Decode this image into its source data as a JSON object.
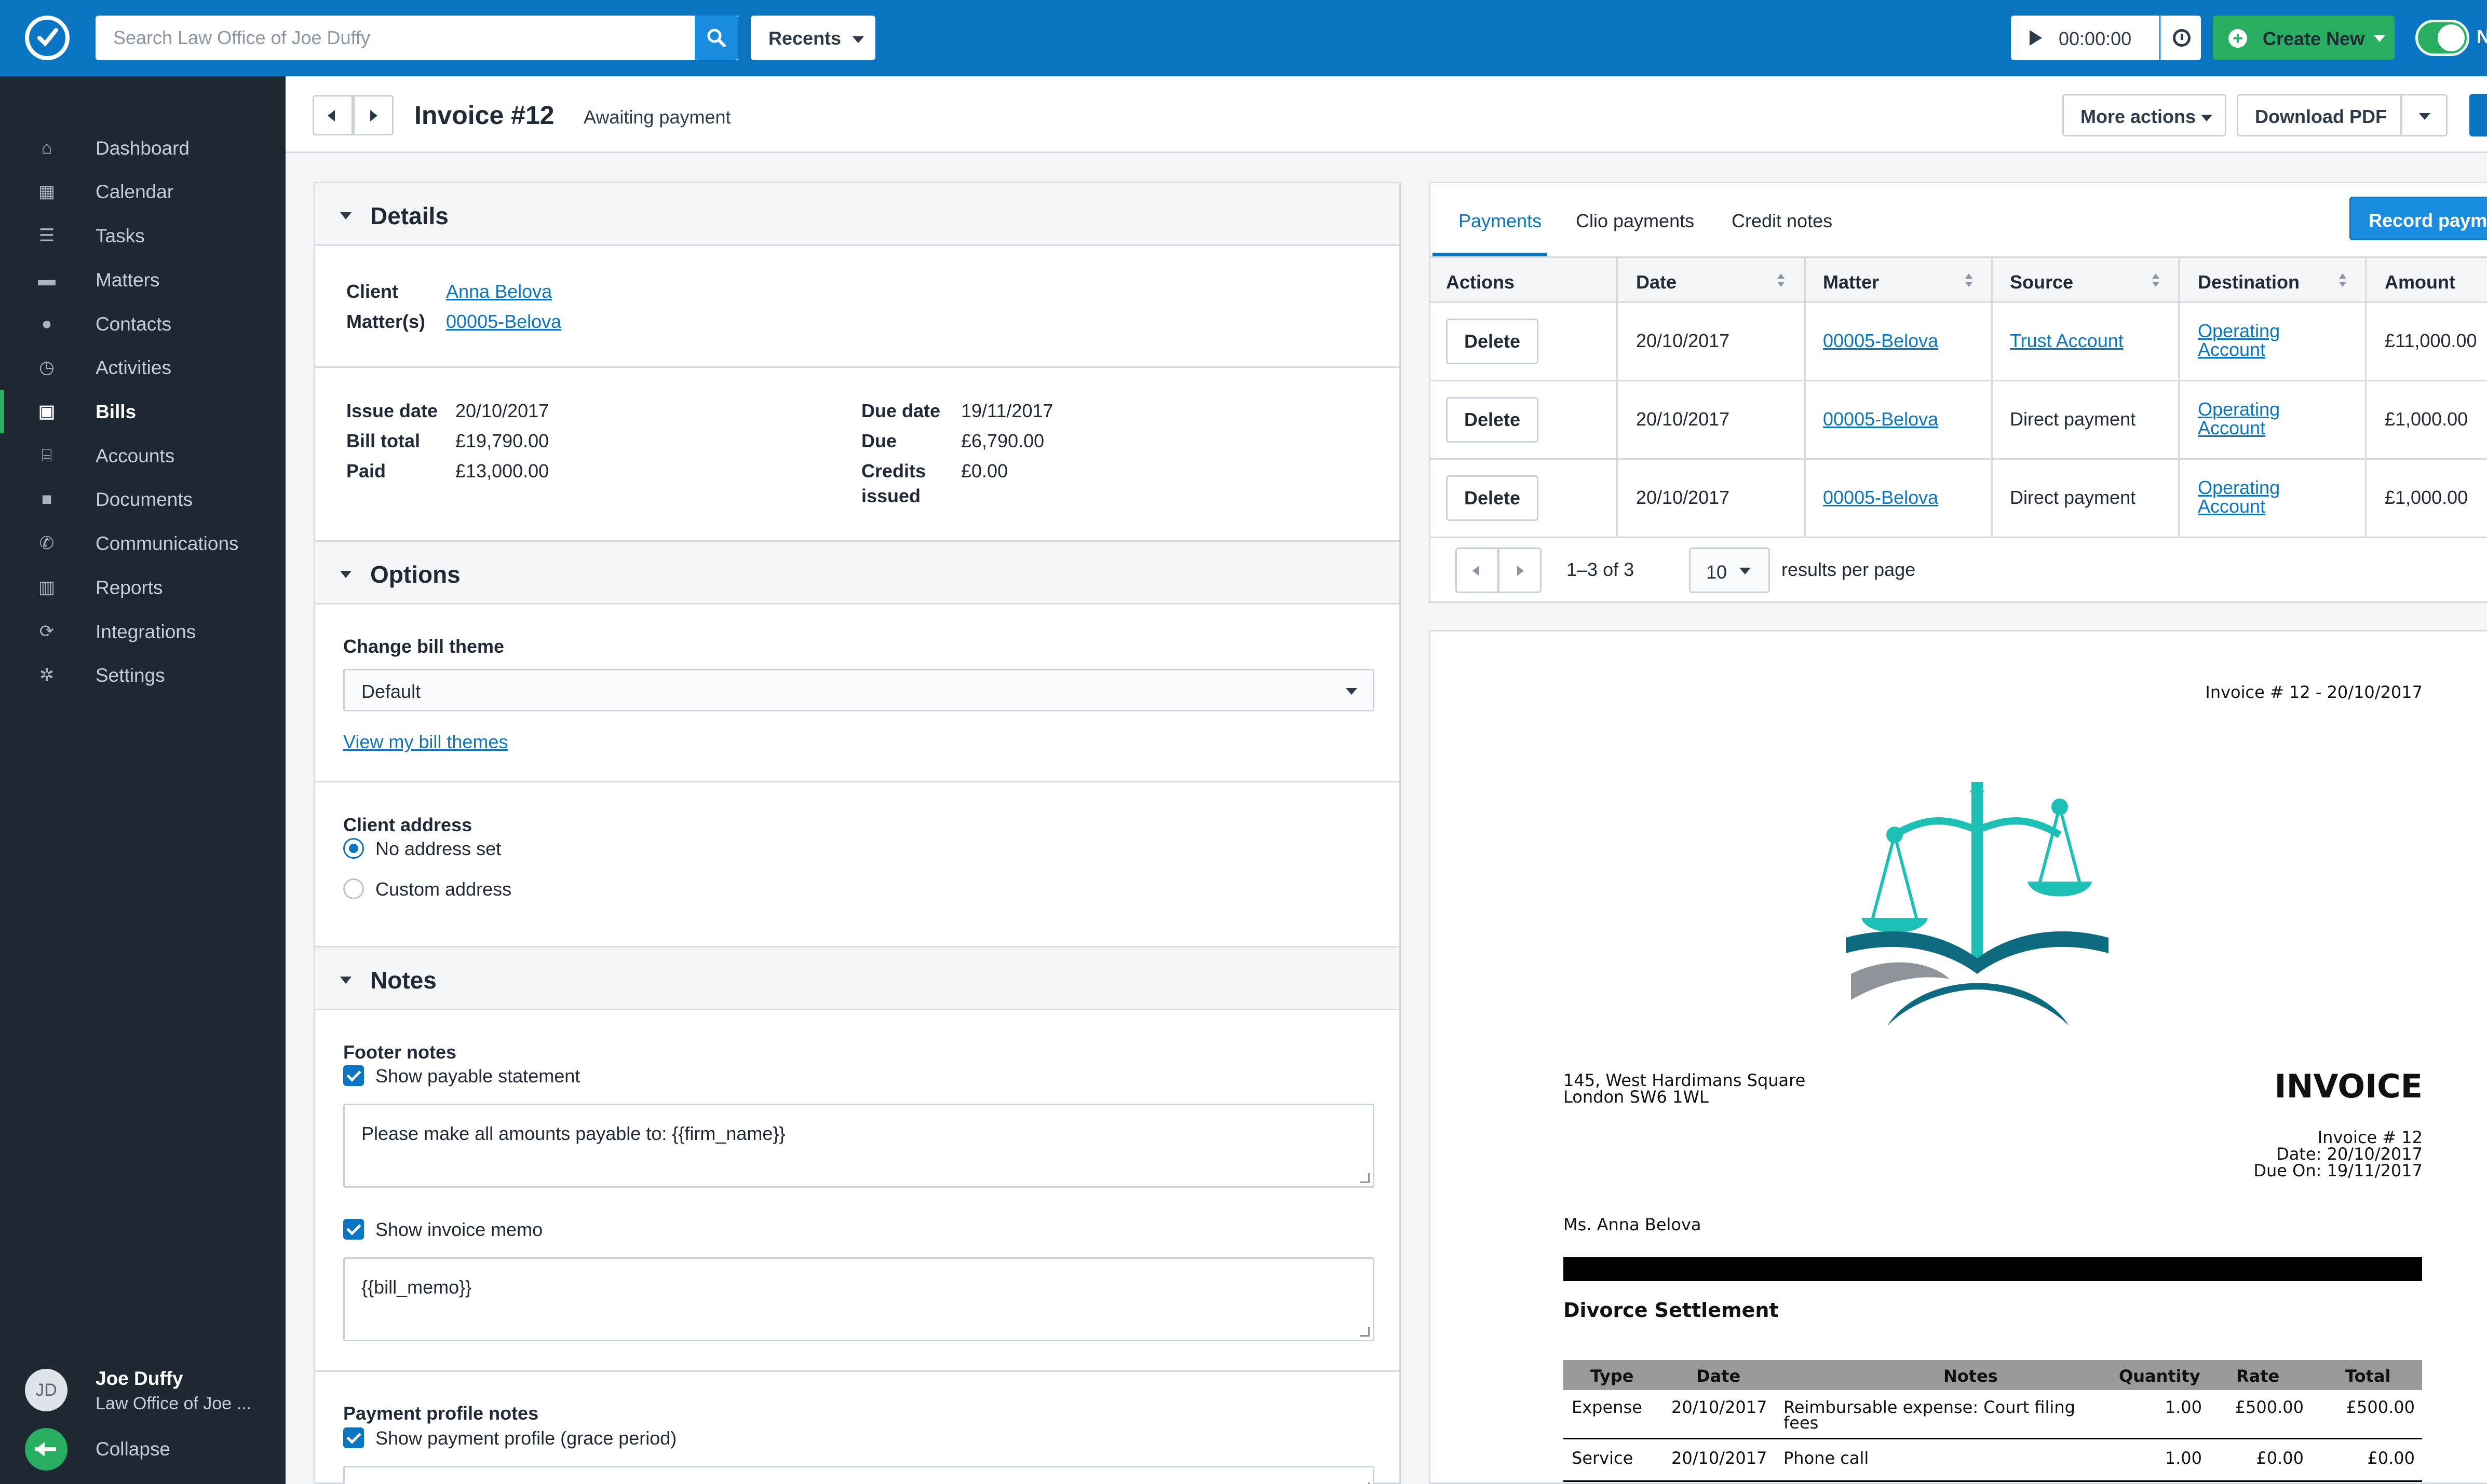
{
  "topbar": {
    "search_placeholder": "Search Law Office of Joe Duffy",
    "recents_label": "Recents",
    "timer": "00:00:00",
    "create_new_label": "Create New",
    "toggle_label": "N"
  },
  "sidebar": {
    "items": [
      {
        "label": "Dashboard",
        "icon": "home-icon"
      },
      {
        "label": "Calendar",
        "icon": "calendar-icon"
      },
      {
        "label": "Tasks",
        "icon": "list-icon"
      },
      {
        "label": "Matters",
        "icon": "briefcase-icon"
      },
      {
        "label": "Contacts",
        "icon": "person-icon"
      },
      {
        "label": "Activities",
        "icon": "clock-icon"
      },
      {
        "label": "Bills",
        "icon": "money-icon",
        "active": true
      },
      {
        "label": "Accounts",
        "icon": "bank-icon"
      },
      {
        "label": "Documents",
        "icon": "folder-icon"
      },
      {
        "label": "Communications",
        "icon": "phone-icon"
      },
      {
        "label": "Reports",
        "icon": "bar-chart-icon"
      },
      {
        "label": "Integrations",
        "icon": "sync-icon"
      },
      {
        "label": "Settings",
        "icon": "gear-icon"
      }
    ],
    "user": {
      "initials": "JD",
      "name": "Joe Duffy",
      "firm": "Law Office of Joe ..."
    },
    "collapse_label": "Collapse"
  },
  "header": {
    "title": "Invoice #12",
    "status": "Awaiting payment",
    "more_actions": "More actions",
    "download_pdf": "Download PDF"
  },
  "details": {
    "section_title": "Details",
    "client_label": "Client",
    "client_value": "Anna Belova",
    "matters_label": "Matter(s)",
    "matters_value": "00005-Belova",
    "issue_date_label": "Issue date",
    "issue_date": "20/10/2017",
    "bill_total_label": "Bill total",
    "bill_total": "£19,790.00",
    "paid_label": "Paid",
    "paid": "£13,000.00",
    "due_date_label": "Due date",
    "due_date": "19/11/2017",
    "due_label": "Due",
    "due": "£6,790.00",
    "credits_label_1": "Credits",
    "credits_label_2": "issued",
    "credits": "£0.00"
  },
  "options": {
    "section_title": "Options",
    "theme_label": "Change bill theme",
    "theme_value": "Default",
    "view_themes_link": "View my bill themes",
    "address_label": "Client address",
    "address_options": [
      "No address set",
      "Custom address"
    ]
  },
  "notes": {
    "section_title": "Notes",
    "footer_label": "Footer notes",
    "show_payable": "Show payable statement",
    "payable_text": "Please make all amounts payable to: {{firm_name}}",
    "show_memo": "Show invoice memo",
    "memo_text": "{{bill_memo}}",
    "payment_profile_label": "Payment profile notes",
    "show_payment_profile": "Show payment profile (grace period)"
  },
  "payments": {
    "tabs": [
      "Payments",
      "Clio payments",
      "Credit notes"
    ],
    "record_button": "Record payment",
    "columns": [
      "Actions",
      "Date",
      "Matter",
      "Source",
      "Destination",
      "Amount"
    ],
    "rows": [
      {
        "action": "Delete",
        "date": "20/10/2017",
        "matter": "00005-Belova",
        "source": "Trust Account",
        "source_link": true,
        "dest_1": "Operating",
        "dest_2": "Account",
        "amount": "£11,000.00"
      },
      {
        "action": "Delete",
        "date": "20/10/2017",
        "matter": "00005-Belova",
        "source": "Direct payment",
        "source_link": false,
        "dest_1": "Operating",
        "dest_2": "Account",
        "amount": "£1,000.00"
      },
      {
        "action": "Delete",
        "date": "20/10/2017",
        "matter": "00005-Belova",
        "source": "Direct payment",
        "source_link": false,
        "dest_1": "Operating",
        "dest_2": "Account",
        "amount": "£1,000.00"
      }
    ],
    "pager_count": "1–3 of 3",
    "per_page": "10",
    "per_page_label": "results per page"
  },
  "invoice_preview": {
    "header_ref": "Invoice # 12 - 20/10/2017",
    "address_1": "145, West Hardimans Square",
    "address_2": "London SW6 1WL",
    "title": "INVOICE",
    "number_line": "Invoice # 12",
    "date_line": "Date: 20/10/2017",
    "due_line": "Due On: 19/11/2017",
    "recipient": "Ms. Anna Belova",
    "matter_title": "Divorce Settlement",
    "table_headers": [
      "Type",
      "Date",
      "Notes",
      "Quantity",
      "Rate",
      "Total"
    ],
    "table_rows": [
      {
        "type": "Expense",
        "date": "20/10/2017",
        "notes_1": "Reimbursable expense: Court filing",
        "notes_2": "fees",
        "qty": "1.00",
        "rate": "£500.00",
        "total": "£500.00"
      },
      {
        "type": "Service",
        "date": "20/10/2017",
        "notes_1": "Phone call",
        "notes_2": "",
        "qty": "1.00",
        "rate": "£0.00",
        "total": "£0.00"
      }
    ],
    "logo_colors": {
      "teal": "#1cc0b4",
      "dark_teal": "#0e6a7e",
      "grey": "#8e9499"
    }
  },
  "colors": {
    "topbar": "#0a75c2",
    "sidebar": "#1d2833",
    "accent_green": "#27ae60",
    "link_blue": "#0a75c2"
  }
}
